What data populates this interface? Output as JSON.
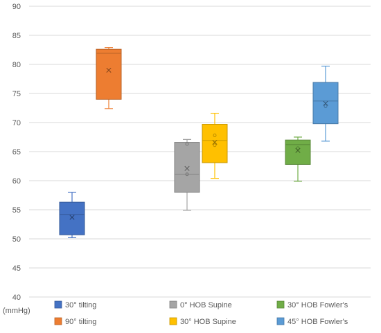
{
  "chart_data": {
    "type": "box",
    "title": "",
    "xlabel": "",
    "ylabel": "",
    "unit_label": "(mmHg)",
    "ylim": [
      40,
      90
    ],
    "y_ticks": [
      40,
      45,
      50,
      55,
      60,
      65,
      70,
      75,
      80,
      85,
      90
    ],
    "grid": true,
    "legend_position": "bottom",
    "series": [
      {
        "name": "30° tilting",
        "color": "#4472C4",
        "whisker_low": 50.2,
        "q1": 50.7,
        "median": 54.2,
        "q3": 56.3,
        "whisker_high": 58.0,
        "mean": 53.7,
        "points": []
      },
      {
        "name": "90° tilting",
        "color": "#ED7D31",
        "whisker_low": 72.4,
        "q1": 74.0,
        "median": 81.9,
        "q3": 82.6,
        "whisker_high": 82.9,
        "mean": 79.0,
        "points": []
      },
      {
        "name": "0° HOB Supine",
        "color": "#A5A5A5",
        "whisker_low": 54.9,
        "q1": 58.0,
        "median": 61.1,
        "q3": 66.6,
        "whisker_high": 67.1,
        "mean": 62.1,
        "points": [
          61.1,
          66.3
        ]
      },
      {
        "name": "30° HOB Supine",
        "color": "#FFC000",
        "whisker_low": 60.4,
        "q1": 63.1,
        "median": 66.9,
        "q3": 69.7,
        "whisker_high": 71.6,
        "mean": 66.6,
        "points": [
          66.1,
          67.8
        ]
      },
      {
        "name": "30° HOB Fowler's",
        "color": "#70AD47",
        "whisker_low": 59.9,
        "q1": 62.8,
        "median": 66.2,
        "q3": 67.0,
        "whisker_high": 67.5,
        "mean": 65.2,
        "points": [
          65.6
        ]
      },
      {
        "name": "45° HOB Fowler's",
        "color": "#5B9BD5",
        "whisker_low": 66.8,
        "q1": 69.8,
        "median": 73.7,
        "q3": 76.9,
        "whisker_high": 79.7,
        "mean": 73.3,
        "points": [
          72.8
        ]
      }
    ]
  }
}
